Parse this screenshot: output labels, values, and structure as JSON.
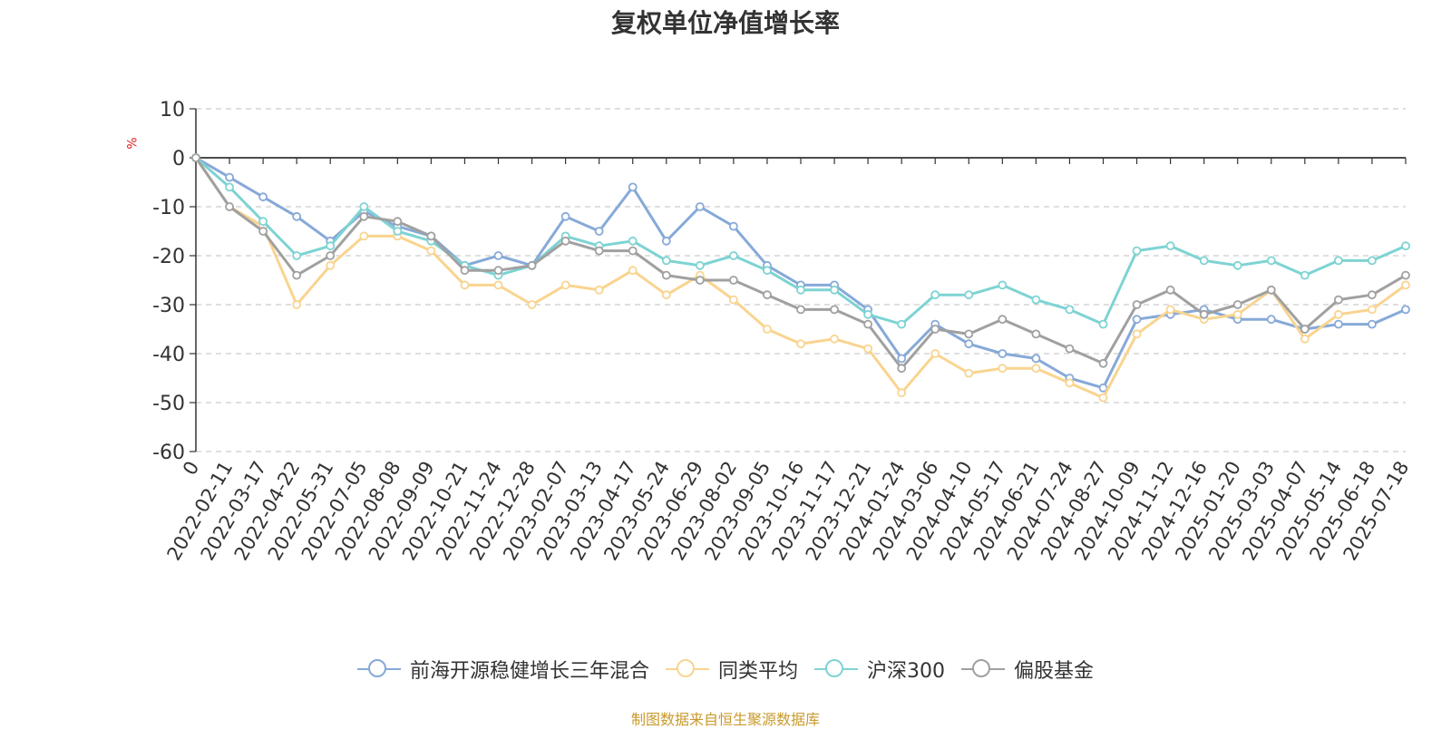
{
  "chart_data": {
    "type": "line",
    "title": "复权单位净值增长率",
    "ylabel": "%",
    "xlabel": "",
    "ylim": [
      -60,
      10
    ],
    "yticks": [
      10,
      0,
      -10,
      -20,
      -30,
      -40,
      -50,
      -60
    ],
    "grid": true,
    "legend_position": "bottom",
    "categories": [
      "0",
      "2022-02-11",
      "2022-03-17",
      "2022-04-22",
      "2022-05-31",
      "2022-07-05",
      "2022-08-08",
      "2022-09-09",
      "2022-10-21",
      "2022-11-24",
      "2022-12-28",
      "2023-02-07",
      "2023-03-13",
      "2023-04-17",
      "2023-05-24",
      "2023-06-29",
      "2023-08-02",
      "2023-09-05",
      "2023-10-16",
      "2023-11-17",
      "2023-12-21",
      "2024-01-24",
      "2024-03-06",
      "2024-04-10",
      "2024-05-17",
      "2024-06-21",
      "2024-07-24",
      "2024-08-27",
      "2024-10-09",
      "2024-11-12",
      "2024-12-16",
      "2025-01-20",
      "2025-03-03",
      "2025-04-07",
      "2025-05-14",
      "2025-06-18",
      "2025-07-18"
    ],
    "series": [
      {
        "name": "前海开源稳健增长三年混合",
        "color": "#86a9d8",
        "values": [
          0,
          -4,
          -8,
          -12,
          -17,
          -11,
          -14,
          -16,
          -22,
          -20,
          -22,
          -12,
          -15,
          -6,
          -17,
          -10,
          -14,
          -22,
          -26,
          -26,
          -31,
          -41,
          -34,
          -38,
          -40,
          -41,
          -45,
          -47,
          -33,
          -32,
          -31,
          -33,
          -33,
          -35,
          -34,
          -34,
          -31
        ]
      },
      {
        "name": "同类平均",
        "color": "#f9d48f",
        "values": [
          0,
          -10,
          -14,
          -30,
          -22,
          -16,
          -16,
          -19,
          -26,
          -26,
          -30,
          -26,
          -27,
          -23,
          -28,
          -24,
          -29,
          -35,
          -38,
          -37,
          -39,
          -48,
          -40,
          -44,
          -43,
          -43,
          -46,
          -49,
          -36,
          -31,
          -33,
          -32,
          -27,
          -37,
          -32,
          -31,
          -26
        ]
      },
      {
        "name": "沪深300",
        "color": "#7ed3d3",
        "values": [
          0,
          -6,
          -13,
          -20,
          -18,
          -10,
          -15,
          -17,
          -22,
          -24,
          -22,
          -16,
          -18,
          -17,
          -21,
          -22,
          -20,
          -23,
          -27,
          -27,
          -32,
          -34,
          -28,
          -28,
          -26,
          -29,
          -31,
          -34,
          -19,
          -18,
          -21,
          -22,
          -21,
          -24,
          -21,
          -21,
          -18
        ]
      },
      {
        "name": "偏股基金",
        "color": "#a0a0a0",
        "values": [
          0,
          -10,
          -15,
          -24,
          -20,
          -12,
          -13,
          -16,
          -23,
          -23,
          -22,
          -17,
          -19,
          -19,
          -24,
          -25,
          -25,
          -28,
          -31,
          -31,
          -34,
          -43,
          -35,
          -36,
          -33,
          -36,
          -39,
          -42,
          -30,
          -27,
          -32,
          -30,
          -27,
          -35,
          -29,
          -28,
          -24
        ]
      }
    ]
  },
  "source_text": "制图数据来自恒生聚源数据库"
}
